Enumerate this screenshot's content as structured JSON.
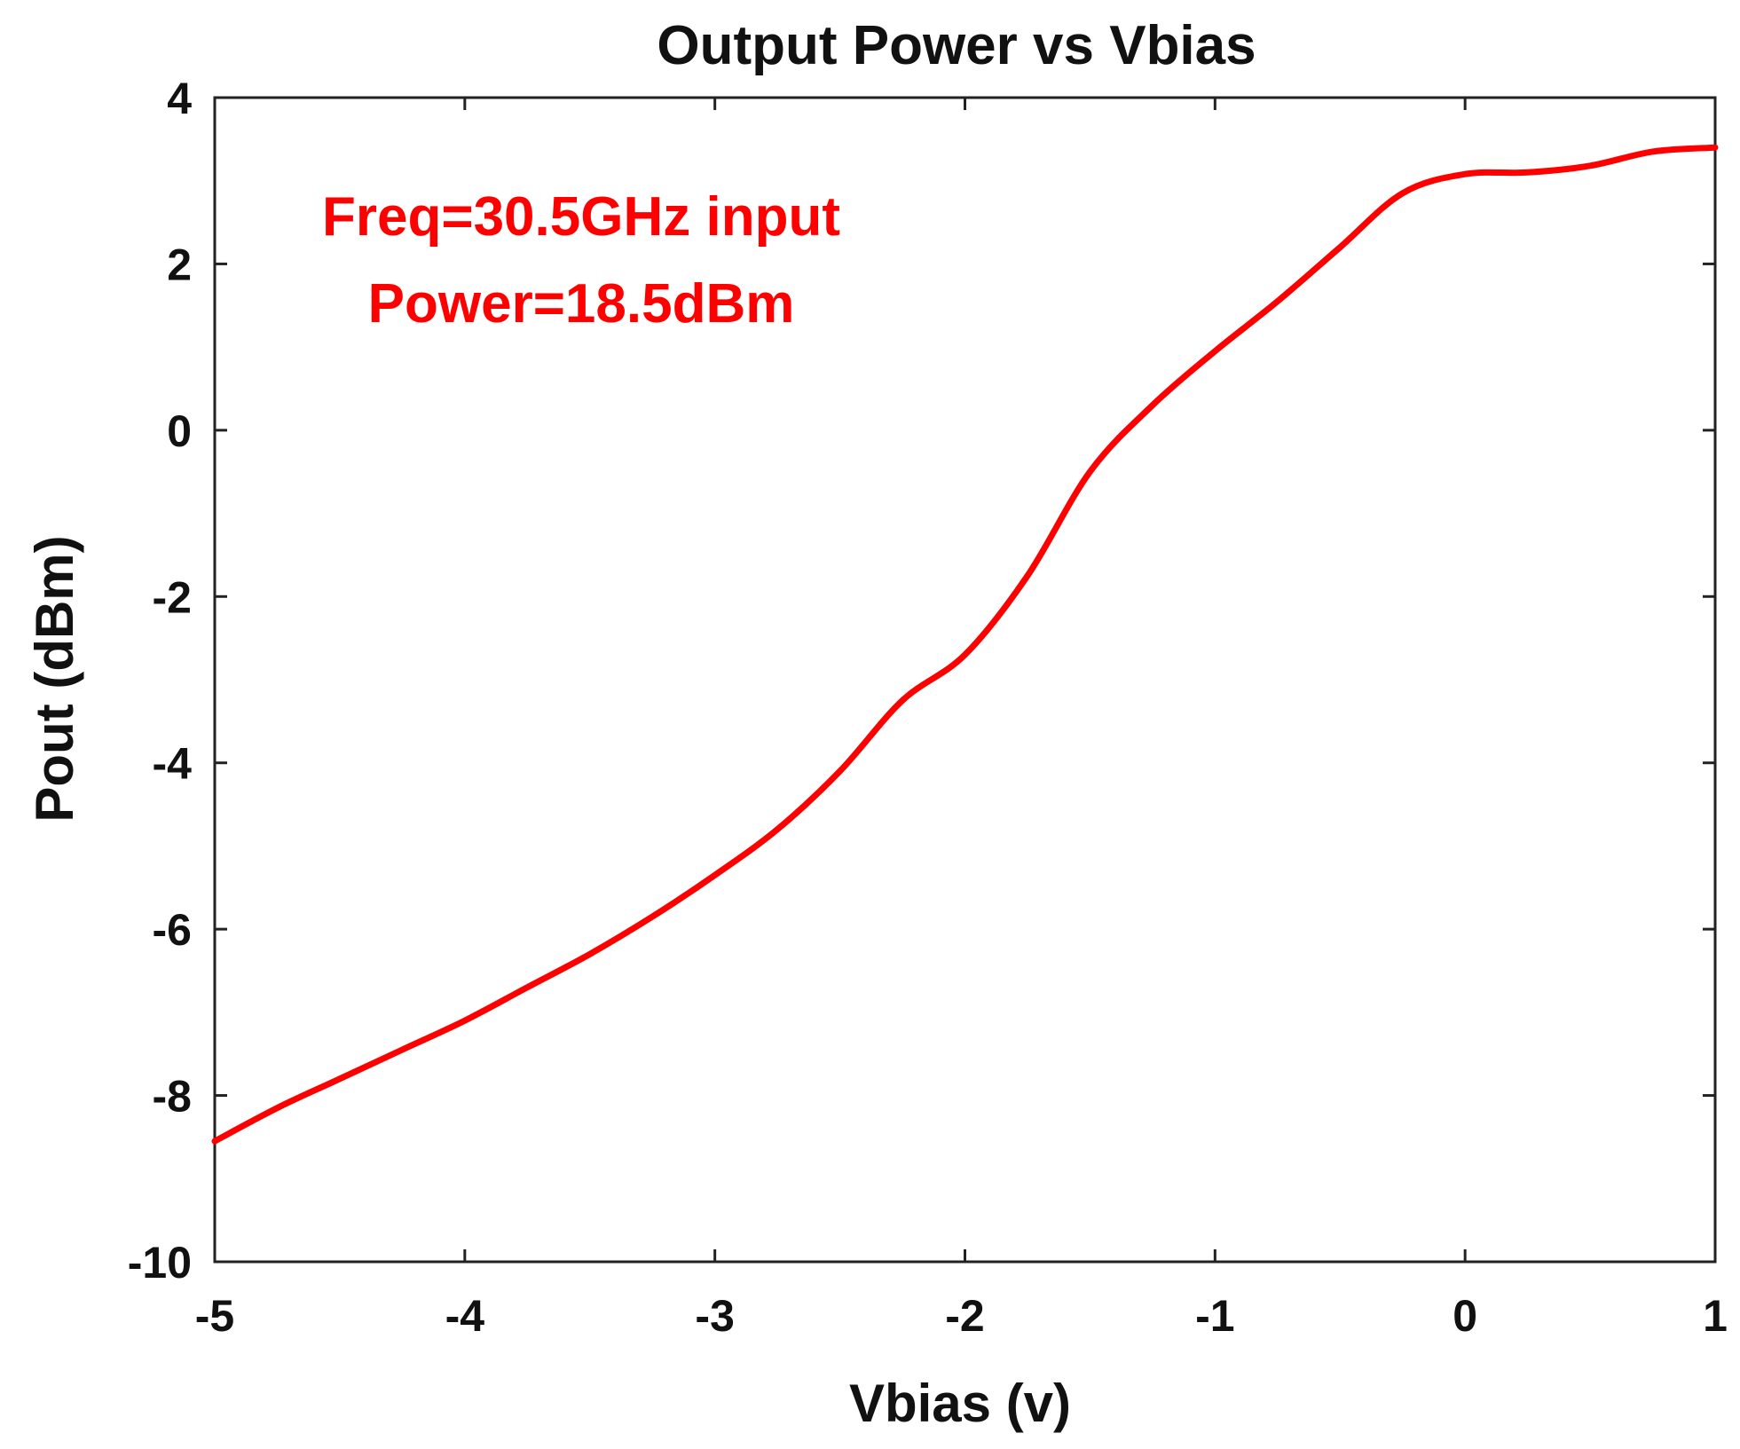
{
  "chart_data": {
    "type": "line",
    "title": "Output Power vs Vbias",
    "xlabel": "Vbias (v)",
    "ylabel": "Pout (dBm)",
    "xlim": [
      -5,
      1
    ],
    "ylim": [
      -10,
      4
    ],
    "x_ticks": [
      -5,
      -4,
      -3,
      -2,
      -1,
      0,
      1
    ],
    "y_ticks": [
      -10,
      -8,
      -6,
      -4,
      -2,
      0,
      2,
      4
    ],
    "x_tick_labels": [
      "-5",
      "-4",
      "-3",
      "-2",
      "-1",
      "0",
      "1"
    ],
    "y_tick_labels": [
      "-10",
      "-8",
      "-6",
      "-4",
      "-2",
      "0",
      "2",
      "4"
    ],
    "grid": false,
    "annotations": [
      "Freq=30.5GHz input",
      "Power=18.5dBm"
    ],
    "annotation_color": "#ff0000",
    "series": [
      {
        "color": "#ff0000",
        "x": [
          -5.0,
          -4.75,
          -4.5,
          -4.25,
          -4.0,
          -3.75,
          -3.5,
          -3.25,
          -3.0,
          -2.75,
          -2.5,
          -2.25,
          -2.0,
          -1.75,
          -1.5,
          -1.25,
          -1.0,
          -0.75,
          -0.5,
          -0.25,
          0.0,
          0.25,
          0.5,
          0.75,
          1.0
        ],
        "y": [
          -8.55,
          -8.15,
          -7.8,
          -7.45,
          -7.1,
          -6.7,
          -6.3,
          -5.85,
          -5.35,
          -4.8,
          -4.1,
          -3.25,
          -2.7,
          -1.75,
          -0.5,
          0.3,
          0.95,
          1.55,
          2.2,
          2.85,
          3.08,
          3.1,
          3.18,
          3.35,
          3.4
        ]
      }
    ]
  }
}
